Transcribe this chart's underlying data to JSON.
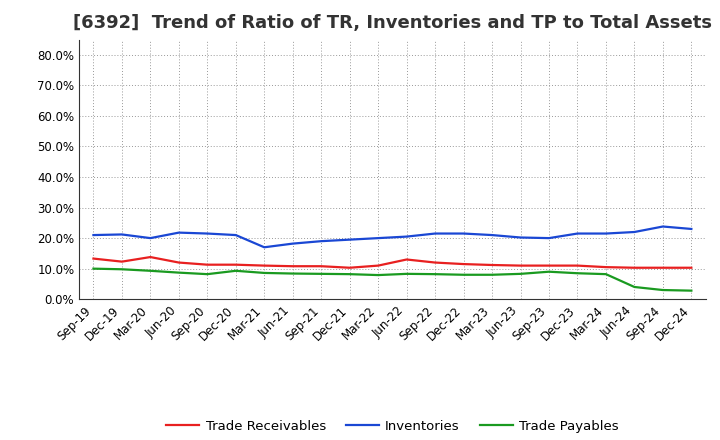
{
  "title": "[6392]  Trend of Ratio of TR, Inventories and TP to Total Assets",
  "x_labels": [
    "Sep-19",
    "Dec-19",
    "Mar-20",
    "Jun-20",
    "Sep-20",
    "Dec-20",
    "Mar-21",
    "Jun-21",
    "Sep-21",
    "Dec-21",
    "Mar-22",
    "Jun-22",
    "Sep-22",
    "Dec-22",
    "Mar-23",
    "Jun-23",
    "Sep-23",
    "Dec-23",
    "Mar-24",
    "Jun-24",
    "Sep-24",
    "Dec-24"
  ],
  "trade_receivables": [
    0.133,
    0.123,
    0.138,
    0.12,
    0.113,
    0.113,
    0.11,
    0.108,
    0.108,
    0.103,
    0.11,
    0.13,
    0.12,
    0.115,
    0.112,
    0.11,
    0.11,
    0.11,
    0.105,
    0.103,
    0.103,
    0.103
  ],
  "inventories": [
    0.21,
    0.212,
    0.2,
    0.218,
    0.215,
    0.21,
    0.17,
    0.182,
    0.19,
    0.195,
    0.2,
    0.205,
    0.215,
    0.215,
    0.21,
    0.202,
    0.2,
    0.215,
    0.215,
    0.22,
    0.238,
    0.23
  ],
  "trade_payables": [
    0.1,
    0.098,
    0.093,
    0.087,
    0.082,
    0.093,
    0.086,
    0.084,
    0.083,
    0.082,
    0.079,
    0.083,
    0.082,
    0.08,
    0.08,
    0.083,
    0.09,
    0.085,
    0.082,
    0.04,
    0.03,
    0.028
  ],
  "line_colors": {
    "trade_receivables": "#e82020",
    "inventories": "#1a47d4",
    "trade_payables": "#1a9a20"
  },
  "legend_labels": [
    "Trade Receivables",
    "Inventories",
    "Trade Payables"
  ],
  "ylim": [
    0.0,
    0.85
  ],
  "yticks": [
    0.0,
    0.1,
    0.2,
    0.3,
    0.4,
    0.5,
    0.6,
    0.7,
    0.8
  ],
  "ytick_labels": [
    "0.0%",
    "10.0%",
    "20.0%",
    "30.0%",
    "40.0%",
    "50.0%",
    "60.0%",
    "70.0%",
    "80.0%"
  ],
  "background_color": "#ffffff",
  "grid_color": "#999999",
  "title_fontsize": 13,
  "tick_fontsize": 8.5,
  "legend_fontsize": 9.5,
  "line_width": 1.6,
  "title_color": "#333333"
}
